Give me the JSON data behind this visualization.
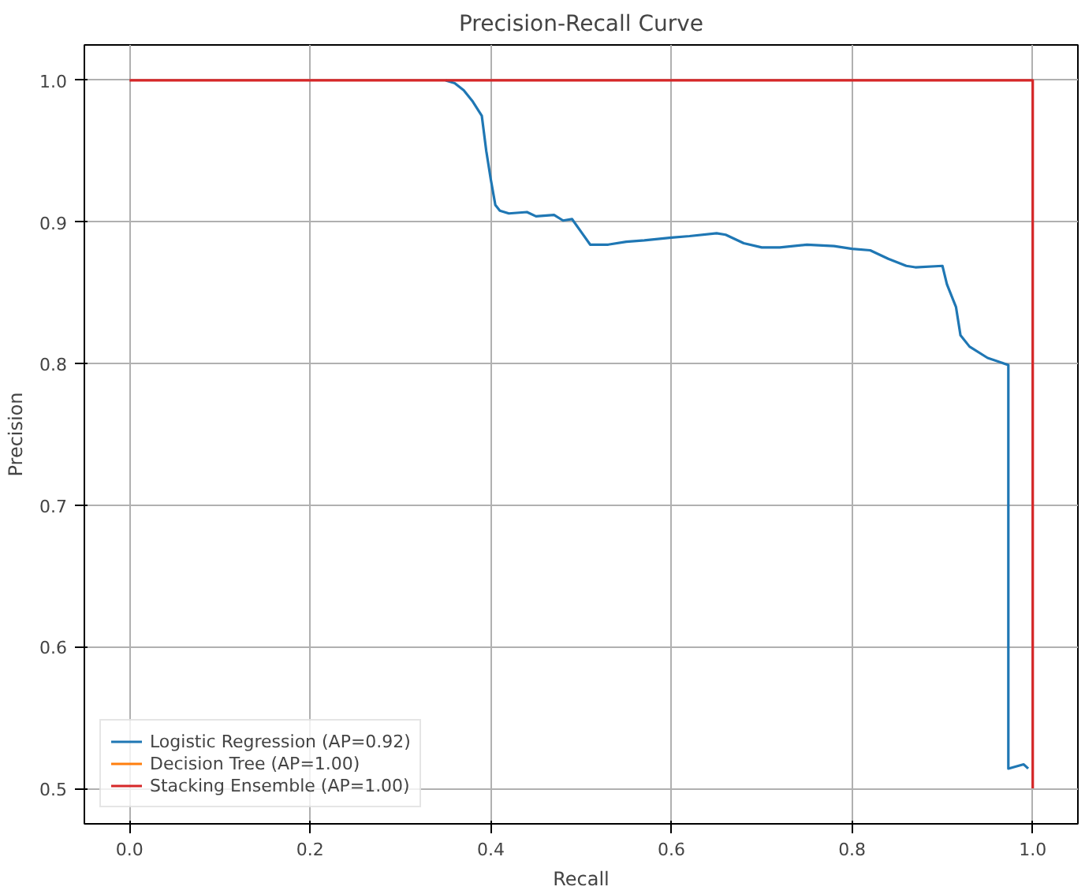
{
  "chart_data": {
    "type": "line",
    "title": "Precision-Recall Curve",
    "xlabel": "Recall",
    "ylabel": "Precision",
    "xlim": [
      -0.05,
      1.05
    ],
    "ylim": [
      0.475,
      1.025
    ],
    "xticks": [
      {
        "value": 0,
        "label": "0.0"
      },
      {
        "value": 0.2,
        "label": "0.2"
      },
      {
        "value": 0.4,
        "label": "0.4"
      },
      {
        "value": 0.6,
        "label": "0.6"
      },
      {
        "value": 0.8,
        "label": "0.8"
      },
      {
        "value": 1,
        "label": "1.0"
      }
    ],
    "yticks": [
      {
        "value": 0.5,
        "label": "0.5"
      },
      {
        "value": 0.6,
        "label": "0.6"
      },
      {
        "value": 0.7,
        "label": "0.7"
      },
      {
        "value": 0.8,
        "label": "0.8"
      },
      {
        "value": 0.9,
        "label": "0.9"
      },
      {
        "value": 1,
        "label": "1.0"
      }
    ],
    "grid": true,
    "legend": "bottom left",
    "line_style": "solid",
    "series": [
      {
        "name": "Logistic Regression (AP=0.92)",
        "color": "#1f77b4",
        "x": [
          0.35,
          0.36,
          0.37,
          0.38,
          0.39,
          0.395,
          0.4,
          0.405,
          0.41,
          0.42,
          0.44,
          0.45,
          0.47,
          0.48,
          0.49,
          0.5,
          0.51,
          0.53,
          0.55,
          0.57,
          0.6,
          0.62,
          0.65,
          0.66,
          0.68,
          0.7,
          0.72,
          0.75,
          0.78,
          0.8,
          0.82,
          0.84,
          0.86,
          0.87,
          0.9,
          0.905,
          0.915,
          0.92,
          0.93,
          0.95,
          0.973,
          0.973,
          0.99,
          0.995
        ],
        "values": [
          1.0,
          0.998,
          0.993,
          0.985,
          0.975,
          0.95,
          0.93,
          0.912,
          0.908,
          0.906,
          0.907,
          0.904,
          0.905,
          0.901,
          0.902,
          0.893,
          0.884,
          0.884,
          0.886,
          0.887,
          0.889,
          0.89,
          0.892,
          0.891,
          0.885,
          0.882,
          0.882,
          0.884,
          0.883,
          0.881,
          0.88,
          0.874,
          0.869,
          0.868,
          0.869,
          0.856,
          0.84,
          0.82,
          0.812,
          0.804,
          0.799,
          0.514,
          0.517,
          0.514
        ]
      },
      {
        "name": "Decision Tree (AP=1.00)",
        "color": "#ff7f0e"
      },
      {
        "name": "Stacking Ensemble (AP=1.00)",
        "color": "#d62728",
        "x": [
          0,
          1,
          1
        ],
        "values": [
          1.0,
          1.0,
          0.5
        ]
      }
    ]
  }
}
